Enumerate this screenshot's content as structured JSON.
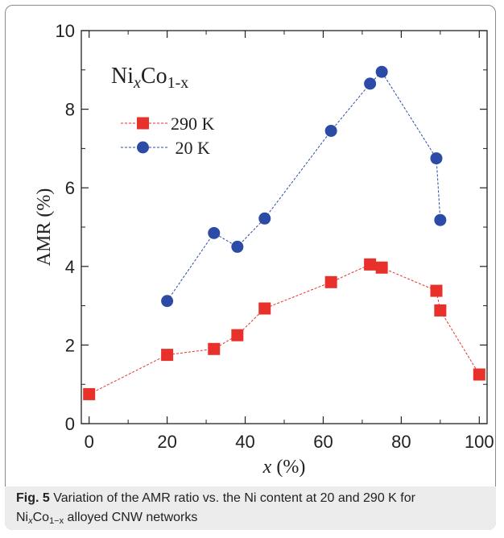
{
  "chart_data": {
    "type": "scatter",
    "inset_label": {
      "base1": "Ni",
      "sub1": "x",
      "base2": "Co",
      "sub2": "1-x"
    },
    "xlabel_var": "x",
    "xlabel_unit": " (%)",
    "ylabel": "AMR (%)",
    "xlim": [
      -2,
      102
    ],
    "ylim": [
      0,
      10
    ],
    "x_ticks": [
      0,
      20,
      40,
      60,
      80,
      100
    ],
    "y_ticks": [
      0,
      2,
      4,
      6,
      8,
      10
    ],
    "legend_position": "upper-left",
    "grid": false,
    "series": [
      {
        "name": "290 K",
        "marker": "square",
        "color": "#e8312a",
        "x": [
          0,
          20,
          32,
          38,
          45,
          62,
          72,
          75,
          89,
          90,
          100
        ],
        "y": [
          0.75,
          1.75,
          1.9,
          2.25,
          2.93,
          3.6,
          4.05,
          3.97,
          3.38,
          2.88,
          1.25
        ]
      },
      {
        "name": " 20 K",
        "marker": "circle",
        "color": "#2b4ba6",
        "x": [
          20,
          32,
          38,
          45,
          62,
          72,
          75,
          89,
          90
        ],
        "y": [
          3.12,
          4.85,
          4.5,
          5.22,
          7.45,
          8.65,
          8.95,
          6.75,
          5.18
        ]
      }
    ]
  },
  "caption": {
    "fig_label": "Fig. 5",
    "text_line1": " Variation of the AMR ratio vs. the Ni content at 20 and 290 K for",
    "ni": "Ni",
    "x_sub": "x",
    "co": "Co",
    "sub_1minusx": "1−x",
    "text_line2_rest": " alloyed CNW networks"
  }
}
